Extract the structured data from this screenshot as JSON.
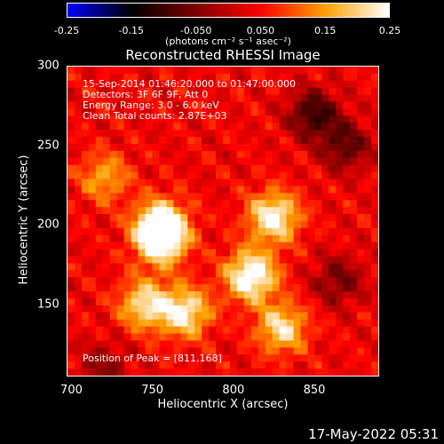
{
  "colorbar": {
    "ticks": [
      "-0.25",
      "-0.15",
      "-0.050",
      "0.050",
      "0.15",
      "0.25"
    ],
    "units": "(photons cm⁻² s⁻¹ asec⁻²)",
    "colors": [
      "#0000ff",
      "#000000",
      "#7f0000",
      "#ff0000",
      "#ffa000",
      "#ffffff"
    ]
  },
  "chart_data": {
    "type": "heatmap",
    "title": "Reconstructed RHESSI Image",
    "xlabel": "Heliocentric X (arcsec)",
    "ylabel": "Heliocentric Y (arcsec)",
    "xlim": [
      697,
      890
    ],
    "ylim": [
      105,
      300
    ],
    "x_ticks": [
      "700",
      "750",
      "800",
      "850"
    ],
    "y_ticks": [
      "150",
      "200",
      "250",
      "300"
    ],
    "info_lines": [
      "15-Sep-2014 01:46:20.000 to 01:47:00.000",
      "Detectors: 3F 6F 9F, Att 0",
      "Energy Range: 3.0 - 6.0 keV",
      "Clean     Total counts: 2.87E+03"
    ],
    "peak_label": "Position of Peak = [811,168]",
    "colorbar_range": [
      -0.25,
      0.25
    ],
    "bright_regions": [
      {
        "x": 755,
        "y": 200,
        "value": 0.23
      },
      {
        "x": 755,
        "y": 190,
        "value": 0.2
      },
      {
        "x": 825,
        "y": 205,
        "value": 0.22
      },
      {
        "x": 811,
        "y": 168,
        "value": 0.25
      },
      {
        "x": 745,
        "y": 150,
        "value": 0.18
      },
      {
        "x": 770,
        "y": 145,
        "value": 0.2
      },
      {
        "x": 830,
        "y": 135,
        "value": 0.18
      },
      {
        "x": 720,
        "y": 230,
        "value": 0.12
      }
    ],
    "dark_regions": [
      {
        "x": 850,
        "y": 270,
        "value": -0.15
      },
      {
        "x": 870,
        "y": 250,
        "value": -0.12
      },
      {
        "x": 865,
        "y": 165,
        "value": -0.1
      },
      {
        "x": 720,
        "y": 110,
        "value": -0.08
      }
    ]
  },
  "timestamp": "17-May-2022 05:31"
}
